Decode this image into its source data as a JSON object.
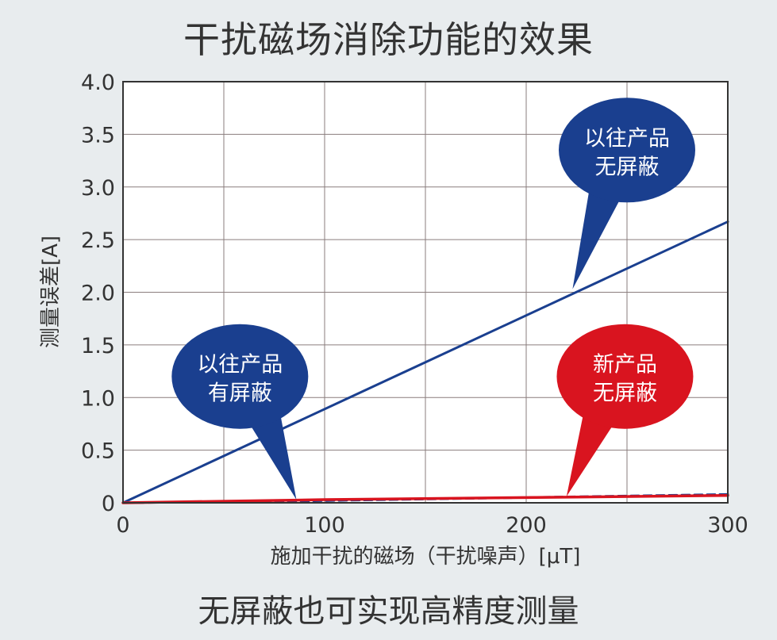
{
  "title": "干扰磁场消除功能的效果",
  "caption": "无屏蔽也可实现高精度测量",
  "chart_data": {
    "type": "line",
    "xlabel": "施加干扰的磁场（干扰噪声）[μT]",
    "ylabel": "测量误差[A]",
    "xlim": [
      0,
      300
    ],
    "ylim": [
      0,
      4.0
    ],
    "x_ticks": [
      0,
      100,
      200,
      300
    ],
    "y_ticks": [
      0,
      0.5,
      1.0,
      1.5,
      2.0,
      2.5,
      3.0,
      3.5,
      4.0
    ],
    "x_tick_labels": [
      "0",
      "100",
      "200",
      "300"
    ],
    "y_tick_labels": [
      "0",
      "0.5",
      "1.0",
      "1.5",
      "2.0",
      "2.5",
      "3.0",
      "3.5",
      "4.0"
    ],
    "grid": true,
    "series": [
      {
        "name": "以往产品 无屏蔽",
        "color": "#1a3f8f",
        "style": "solid",
        "width": 3,
        "x": [
          0,
          300
        ],
        "y": [
          0,
          2.67
        ]
      },
      {
        "name": "以往产品 有屏蔽",
        "color": "#1a3f8f",
        "style": "dashed",
        "width": 3,
        "x": [
          0,
          100,
          200,
          300
        ],
        "y": [
          0,
          0.02,
          0.05,
          0.08
        ]
      },
      {
        "name": "新产品 无屏蔽",
        "color": "#d9141f",
        "style": "solid",
        "width": 3.5,
        "x": [
          0,
          100,
          200,
          300
        ],
        "y": [
          0,
          0.03,
          0.05,
          0.07
        ]
      }
    ],
    "annotations": [
      {
        "lines": [
          "以往产品",
          "无屏蔽"
        ],
        "color": "#1a3f8f",
        "center": [
          250,
          3.35
        ],
        "pointer": [
          223,
          2.03
        ]
      },
      {
        "lines": [
          "以往产品",
          "有屏蔽"
        ],
        "color": "#1a3f8f",
        "center": [
          58,
          1.2
        ],
        "pointer": [
          86,
          0.03
        ]
      },
      {
        "lines": [
          "新产品",
          "无屏蔽"
        ],
        "color": "#d9141f",
        "center": [
          249,
          1.2
        ],
        "pointer": [
          220,
          0.06
        ]
      }
    ]
  }
}
